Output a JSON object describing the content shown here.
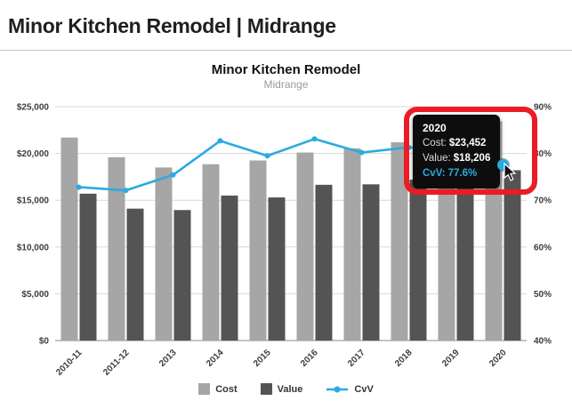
{
  "header": {
    "title": "Minor Kitchen Remodel | Midrange"
  },
  "chart_data": {
    "type": "bar+line combo",
    "title": "Minor Kitchen Remodel",
    "subtitle": "Midrange",
    "categories": [
      "2010-11",
      "2011-12",
      "2013",
      "2014",
      "2015",
      "2016",
      "2017",
      "2018",
      "2019",
      "2020"
    ],
    "series": [
      {
        "name": "Cost",
        "type": "bar",
        "axis": "left",
        "color": "#a6a6a6",
        "values": [
          21700,
          19600,
          18500,
          18850,
          19250,
          20100,
          20550,
          21200,
          22500,
          23452
        ]
      },
      {
        "name": "Value",
        "type": "bar",
        "axis": "left",
        "color": "#545454",
        "values": [
          15700,
          14100,
          13950,
          15500,
          15300,
          16650,
          16700,
          17200,
          18100,
          18206
        ]
      },
      {
        "name": "CvV",
        "type": "line",
        "axis": "right",
        "color": "#29abe2",
        "values": [
          72.8,
          72.1,
          75.4,
          82.7,
          79.5,
          83.1,
          80.2,
          81.3,
          80.5,
          77.6
        ]
      }
    ],
    "left_axis": {
      "min": 0,
      "max": 25000,
      "ticks": [
        {
          "v": 0,
          "label": "$0"
        },
        {
          "v": 5000,
          "label": "$5,000"
        },
        {
          "v": 10000,
          "label": "$10,000"
        },
        {
          "v": 15000,
          "label": "$15,000"
        },
        {
          "v": 20000,
          "label": "$20,000"
        },
        {
          "v": 25000,
          "label": "$25,000"
        }
      ]
    },
    "right_axis": {
      "min": 40,
      "max": 90,
      "ticks": [
        {
          "v": 40,
          "label": "40%"
        },
        {
          "v": 50,
          "label": "50%"
        },
        {
          "v": 60,
          "label": "60%"
        },
        {
          "v": 70,
          "label": "70%"
        },
        {
          "v": 80,
          "label": "80%"
        },
        {
          "v": 90,
          "label": "90%"
        }
      ]
    },
    "grid": true,
    "legend_position": "bottom",
    "legend": [
      {
        "label": "Cost",
        "color": "#a6a6a6",
        "type": "square"
      },
      {
        "label": "Value",
        "color": "#545454",
        "type": "square"
      },
      {
        "label": "CvV",
        "color": "#29abe2",
        "type": "line-dot"
      }
    ]
  },
  "tooltip": {
    "year": "2020",
    "rows": [
      {
        "label": "Cost:",
        "value": "$23,452"
      },
      {
        "label": "Value:",
        "value": "$18,206"
      },
      {
        "label": "CvV:",
        "value": "77.6%"
      }
    ],
    "highlight_color": "#ec1c24"
  }
}
